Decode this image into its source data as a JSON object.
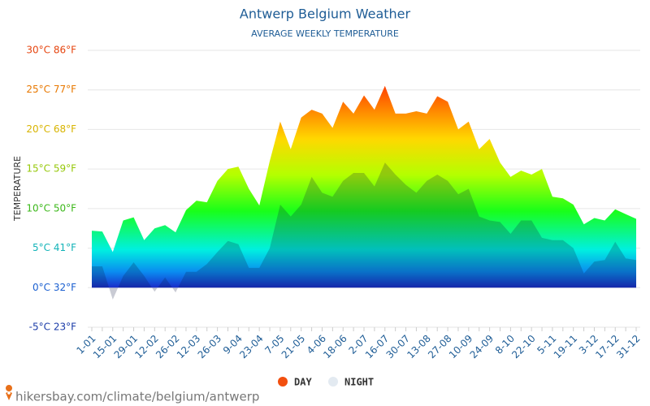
{
  "chart_data": {
    "type": "area",
    "title": "Antwerp Belgium Weather",
    "subtitle": "AVERAGE WEEKLY TEMPERATURE",
    "y_label": "TEMPERATURE",
    "source": "hikersbay.com/climate/belgium/antwerp",
    "categories": [
      "1-01",
      null,
      "15-01",
      null,
      "29-01",
      null,
      "12-02",
      null,
      "26-02",
      null,
      "12-03",
      null,
      "26-03",
      null,
      "9-04",
      null,
      "23-04",
      null,
      "7-05",
      null,
      "21-05",
      null,
      "4-06",
      null,
      "18-06",
      null,
      "2-07",
      null,
      "16-07",
      null,
      "30-07",
      null,
      "13-08",
      null,
      "27-08",
      null,
      "10-09",
      null,
      "24-09",
      null,
      "8-10",
      null,
      "22-10",
      null,
      "5-11",
      null,
      "19-11",
      null,
      "3-12",
      null,
      "17-12",
      null,
      "31-12"
    ],
    "series": [
      {
        "name": "DAY",
        "color": "#f24f0f",
        "values": [
          7.2,
          7.1,
          4.5,
          8.5,
          8.9,
          6.0,
          7.5,
          7.9,
          7.0,
          9.8,
          11.0,
          10.8,
          13.5,
          15.0,
          15.3,
          12.5,
          10.4,
          16.0,
          21.0,
          17.5,
          21.5,
          22.5,
          22.0,
          20.2,
          23.5,
          22.0,
          24.3,
          22.5,
          25.5,
          22.0,
          22.0,
          22.3,
          22.0,
          24.2,
          23.5,
          20.0,
          21.0,
          17.5,
          18.8,
          15.8,
          14.0,
          14.8,
          14.3,
          15.0,
          11.5,
          11.3,
          10.5,
          8.0,
          8.8,
          8.5,
          9.9,
          9.3,
          8.7
        ]
      },
      {
        "name": "NIGHT",
        "color": "#e3eaf1",
        "values": [
          2.7,
          2.7,
          -1.5,
          1.5,
          3.2,
          1.5,
          -0.5,
          1.3,
          -0.6,
          2.0,
          2.0,
          3.0,
          4.5,
          5.9,
          5.5,
          2.5,
          2.5,
          5.0,
          10.5,
          9.0,
          10.5,
          14.0,
          12.0,
          11.5,
          13.5,
          14.5,
          14.5,
          12.8,
          15.8,
          14.3,
          13.0,
          12.0,
          13.5,
          14.3,
          13.5,
          11.8,
          12.5,
          9.0,
          8.5,
          8.3,
          6.8,
          8.5,
          8.5,
          6.3,
          6.0,
          6.0,
          5.0,
          1.8,
          3.3,
          3.5,
          5.8,
          3.7,
          3.5
        ]
      }
    ],
    "ylim": [
      -5,
      30
    ],
    "yticks": [
      {
        "value": -5,
        "label": "-5°C 23°F"
      },
      {
        "value": 0,
        "label": "0°C 32°F"
      },
      {
        "value": 5,
        "label": "5°C 41°F"
      },
      {
        "value": 10,
        "label": "10°C 50°F"
      },
      {
        "value": 15,
        "label": "15°C 59°F"
      },
      {
        "value": 20,
        "label": "20°C 68°F"
      },
      {
        "value": 25,
        "label": "25°C 77°F"
      },
      {
        "value": 30,
        "label": "30°C 86°F"
      }
    ],
    "grid": true
  }
}
